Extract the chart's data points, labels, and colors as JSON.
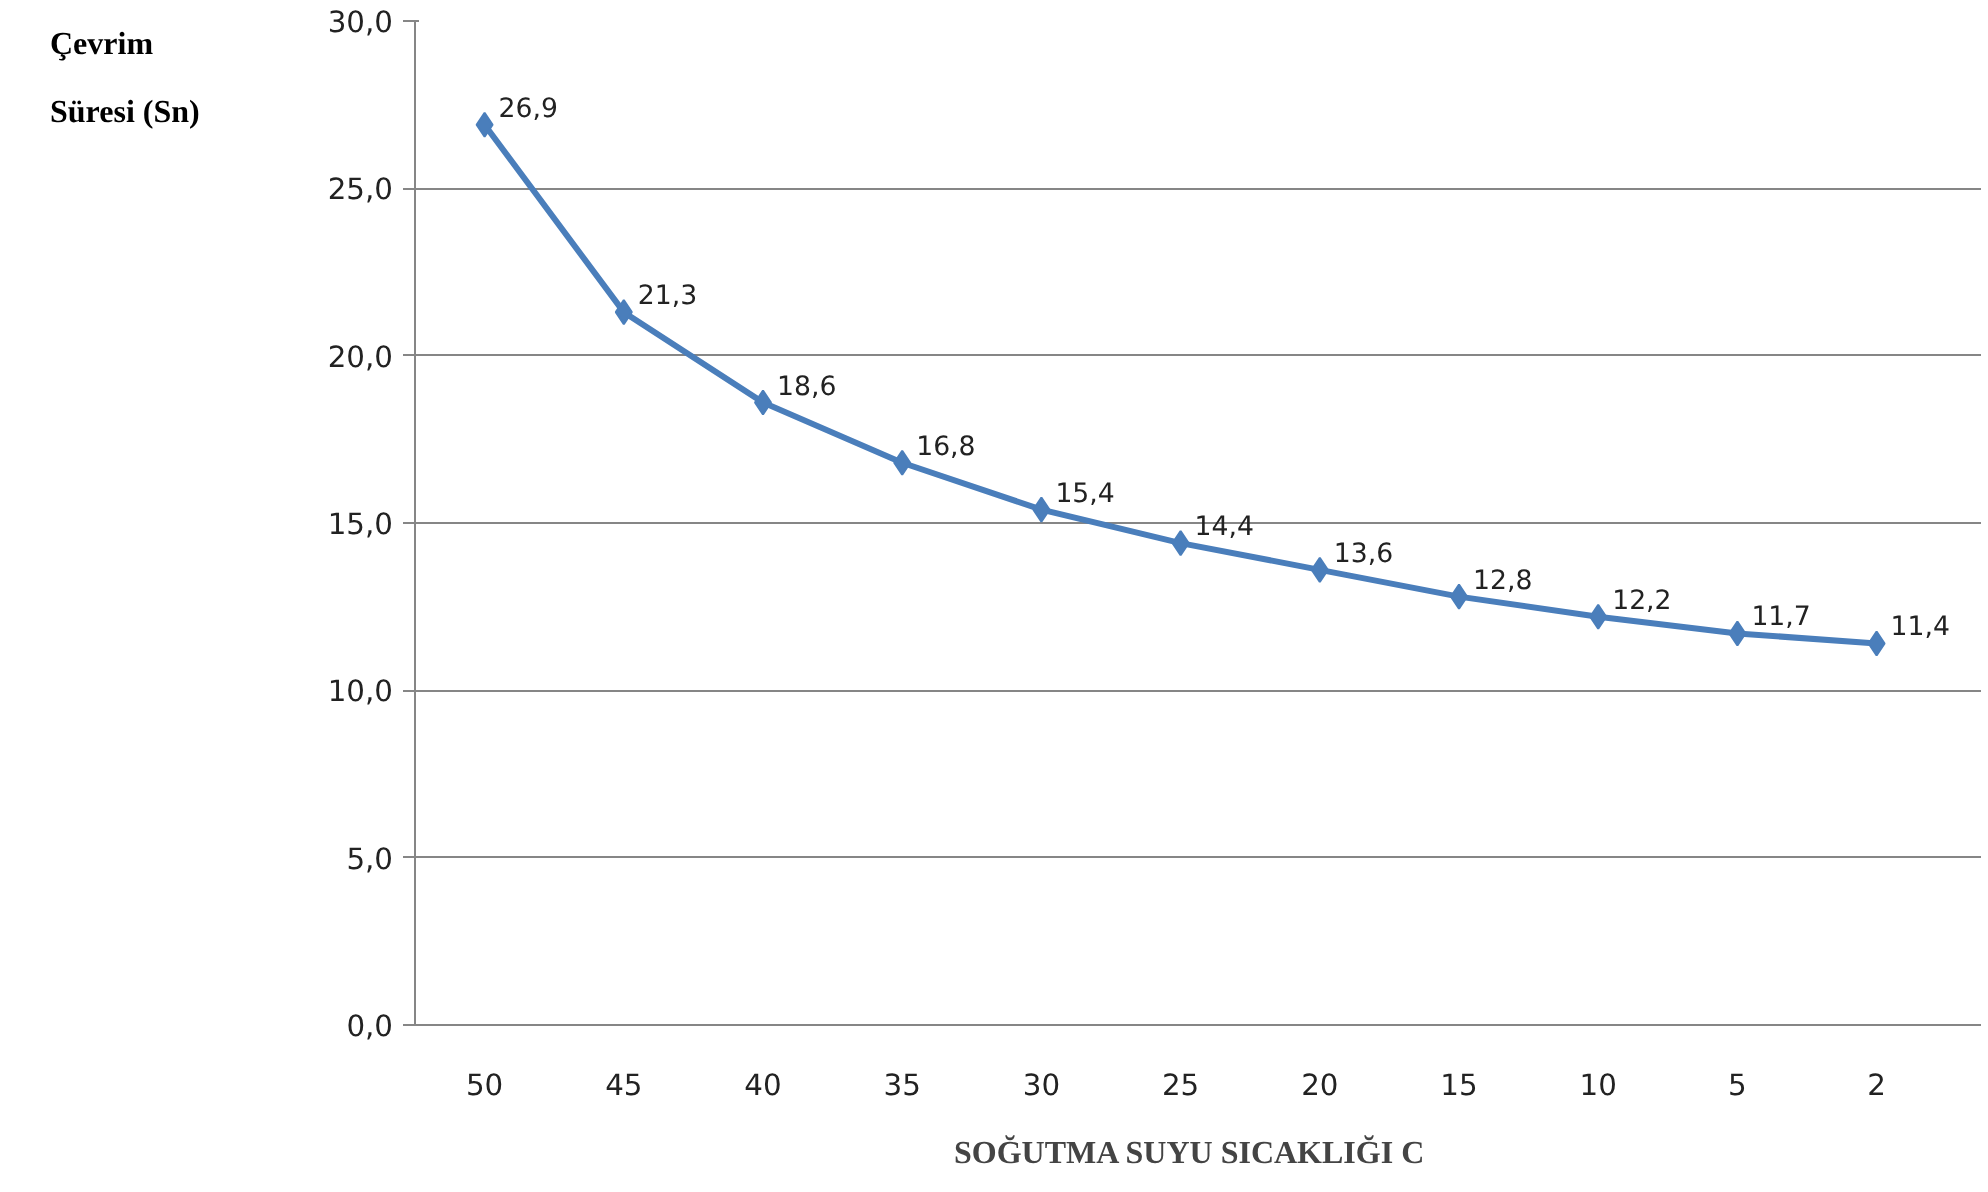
{
  "chart_data": {
    "type": "line",
    "xlabel": "SOĞUTMA SUYU SICAKLIĞI   C",
    "ylabel": "Çevrim\nSüresi (Sn)",
    "categories": [
      "50",
      "45",
      "40",
      "35",
      "30",
      "25",
      "20",
      "15",
      "10",
      "5",
      "2"
    ],
    "series": [
      {
        "color": "#4a7ebb",
        "values": [
          26.9,
          21.3,
          18.6,
          16.8,
          15.4,
          14.4,
          13.6,
          12.8,
          12.2,
          11.7,
          11.4
        ],
        "value_labels": [
          "26,9",
          "21,3",
          "18,6",
          "16,8",
          "15,4",
          "14,4",
          "13,6",
          "12,8",
          "12,2",
          "11,7",
          "11,4"
        ]
      }
    ],
    "ylim": [
      0,
      30
    ],
    "yticks": [
      {
        "value": 0,
        "label": "0,0"
      },
      {
        "value": 5,
        "label": "5,0"
      },
      {
        "value": 10,
        "label": "10,0"
      },
      {
        "value": 15,
        "label": "15,0"
      },
      {
        "value": 20,
        "label": "20,0"
      },
      {
        "value": 25,
        "label": "25,0"
      },
      {
        "value": 30,
        "label": "30,0"
      }
    ],
    "grid": "y",
    "marker": "diamond",
    "line_style": "solid"
  }
}
